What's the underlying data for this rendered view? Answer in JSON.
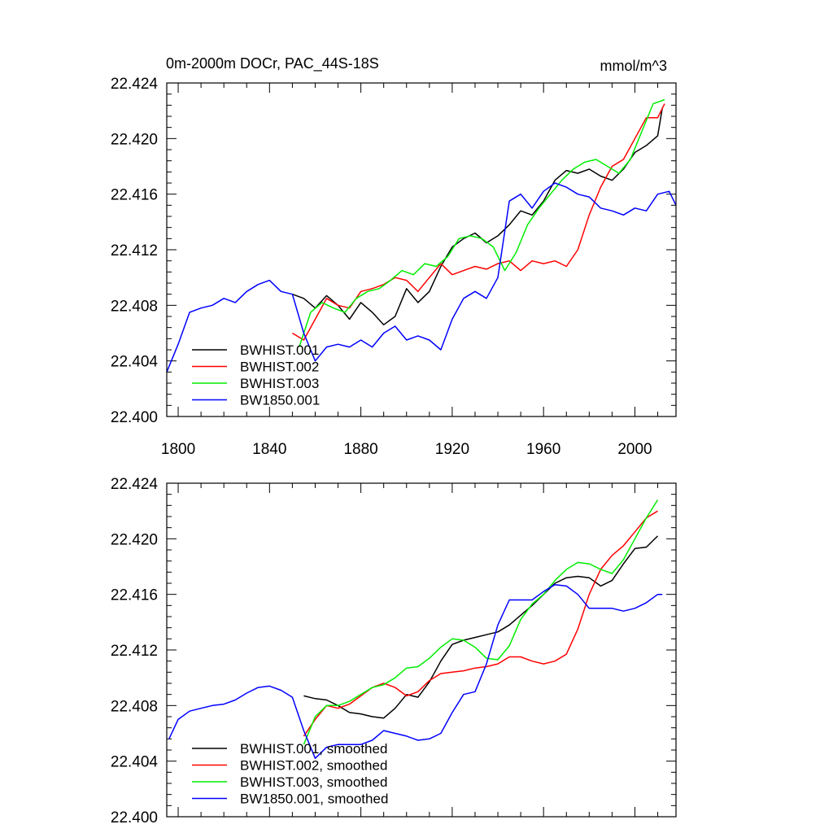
{
  "chart_data": [
    {
      "type": "line",
      "title": "0m-2000m DOCr, PAC_44S-18S",
      "units": "mmol/m^3",
      "xlim": [
        1795,
        2018
      ],
      "ylim": [
        22.4,
        22.424
      ],
      "x_ticks": [
        1800,
        1840,
        1880,
        1920,
        1960,
        2000
      ],
      "x_tick_labels": [
        "1800",
        "1840",
        "1880",
        "1920",
        "1960",
        "2000"
      ],
      "y_ticks": [
        22.4,
        22.404,
        22.408,
        22.412,
        22.416,
        22.42,
        22.424
      ],
      "y_tick_labels": [
        "22.400",
        "22.404",
        "22.408",
        "22.412",
        "22.416",
        "22.420",
        "22.424"
      ],
      "legend_position": "bottom-left",
      "series": [
        {
          "name": "BWHIST.001",
          "color": "#000000",
          "x": [
            1850,
            1855,
            1860,
            1865,
            1870,
            1875,
            1880,
            1885,
            1890,
            1895,
            1900,
            1905,
            1910,
            1915,
            1920,
            1925,
            1930,
            1935,
            1940,
            1945,
            1950,
            1955,
            1960,
            1965,
            1970,
            1975,
            1980,
            1985,
            1990,
            1995,
            2000,
            2005,
            2010,
            2012
          ],
          "y": [
            22.4088,
            22.4085,
            22.4078,
            22.4087,
            22.408,
            22.407,
            22.4082,
            22.4075,
            22.4066,
            22.4072,
            22.4092,
            22.4082,
            22.409,
            22.4108,
            22.4122,
            22.4128,
            22.4132,
            22.4125,
            22.413,
            22.4138,
            22.4148,
            22.4145,
            22.4155,
            22.417,
            22.4177,
            22.4175,
            22.4178,
            22.4173,
            22.417,
            22.4178,
            22.419,
            22.4195,
            22.4202,
            22.4222
          ]
        },
        {
          "name": "BWHIST.002",
          "color": "#ff0000",
          "x": [
            1850,
            1855,
            1860,
            1865,
            1870,
            1875,
            1880,
            1885,
            1890,
            1895,
            1900,
            1905,
            1910,
            1915,
            1920,
            1925,
            1930,
            1935,
            1940,
            1945,
            1950,
            1955,
            1960,
            1965,
            1970,
            1975,
            1980,
            1985,
            1990,
            1995,
            2000,
            2005,
            2010,
            2013
          ],
          "y": [
            22.406,
            22.4055,
            22.407,
            22.4085,
            22.408,
            22.4078,
            22.409,
            22.4092,
            22.4095,
            22.41,
            22.4098,
            22.409,
            22.41,
            22.411,
            22.4102,
            22.4105,
            22.4108,
            22.4106,
            22.411,
            22.4112,
            22.4105,
            22.4112,
            22.411,
            22.4112,
            22.4108,
            22.412,
            22.4145,
            22.4165,
            22.418,
            22.4185,
            22.42,
            22.4215,
            22.4215,
            22.4225
          ]
        },
        {
          "name": "BWHIST.003",
          "color": "#00ee00",
          "x": [
            1853,
            1858,
            1863,
            1868,
            1873,
            1878,
            1883,
            1888,
            1893,
            1898,
            1903,
            1908,
            1913,
            1918,
            1923,
            1928,
            1933,
            1938,
            1943,
            1948,
            1953,
            1958,
            1963,
            1968,
            1973,
            1978,
            1983,
            1988,
            1993,
            1998,
            2003,
            2008,
            2013
          ],
          "y": [
            22.405,
            22.4075,
            22.4082,
            22.4078,
            22.4075,
            22.4085,
            22.409,
            22.4092,
            22.4098,
            22.4105,
            22.4102,
            22.411,
            22.4108,
            22.4115,
            22.4128,
            22.413,
            22.4128,
            22.4122,
            22.4105,
            22.4118,
            22.4138,
            22.415,
            22.416,
            22.417,
            22.4178,
            22.4183,
            22.4185,
            22.418,
            22.4175,
            22.4185,
            22.4205,
            22.4225,
            22.4228
          ]
        },
        {
          "name": "BW1850.001",
          "color": "#0000ff",
          "x": [
            1795,
            1800,
            1805,
            1810,
            1815,
            1820,
            1825,
            1830,
            1835,
            1840,
            1845,
            1850,
            1855,
            1860,
            1865,
            1870,
            1875,
            1880,
            1885,
            1890,
            1895,
            1900,
            1905,
            1910,
            1915,
            1920,
            1925,
            1930,
            1935,
            1940,
            1945,
            1950,
            1955,
            1960,
            1965,
            1970,
            1975,
            1980,
            1985,
            1990,
            1995,
            2000,
            2005,
            2010,
            2015,
            2018
          ],
          "y": [
            22.4032,
            22.4052,
            22.4075,
            22.4078,
            22.408,
            22.4085,
            22.4082,
            22.409,
            22.4095,
            22.4098,
            22.409,
            22.4088,
            22.406,
            22.404,
            22.405,
            22.4052,
            22.405,
            22.4055,
            22.405,
            22.406,
            22.4065,
            22.4055,
            22.4058,
            22.4055,
            22.4048,
            22.407,
            22.4085,
            22.409,
            22.4085,
            22.41,
            22.4155,
            22.416,
            22.415,
            22.4162,
            22.4168,
            22.4165,
            22.416,
            22.4158,
            22.415,
            22.4148,
            22.4145,
            22.415,
            22.4148,
            22.416,
            22.4162,
            22.4152
          ]
        }
      ]
    },
    {
      "type": "line",
      "xlim": [
        1795,
        2018
      ],
      "ylim": [
        22.4,
        22.424
      ],
      "x_ticks": [
        1800,
        1840,
        1880,
        1920,
        1960,
        2000
      ],
      "y_ticks": [
        22.4,
        22.404,
        22.408,
        22.412,
        22.416,
        22.42,
        22.424
      ],
      "y_tick_labels": [
        "22.400",
        "22.404",
        "22.408",
        "22.412",
        "22.416",
        "22.420",
        "22.424"
      ],
      "legend_position": "bottom-left",
      "series": [
        {
          "name": "BWHIST.001, smoothed",
          "color": "#000000",
          "x": [
            1855,
            1860,
            1865,
            1870,
            1875,
            1880,
            1885,
            1890,
            1895,
            1900,
            1905,
            1910,
            1915,
            1920,
            1925,
            1930,
            1935,
            1940,
            1945,
            1950,
            1955,
            1960,
            1965,
            1970,
            1975,
            1980,
            1985,
            1990,
            1995,
            2000,
            2005,
            2010
          ],
          "y": [
            22.4087,
            22.4085,
            22.4084,
            22.408,
            22.4075,
            22.4074,
            22.4072,
            22.4071,
            22.4078,
            22.4088,
            22.4086,
            22.4097,
            22.4112,
            22.4124,
            22.4127,
            22.4129,
            22.4131,
            22.4133,
            22.4138,
            22.4145,
            22.4152,
            22.416,
            22.4168,
            22.4172,
            22.4173,
            22.4172,
            22.4166,
            22.417,
            22.4182,
            22.4193,
            22.4194,
            22.4202
          ]
        },
        {
          "name": "BWHIST.002, smoothed",
          "color": "#ff0000",
          "x": [
            1855,
            1860,
            1865,
            1870,
            1875,
            1880,
            1885,
            1890,
            1895,
            1900,
            1905,
            1910,
            1915,
            1920,
            1925,
            1930,
            1935,
            1940,
            1945,
            1950,
            1955,
            1960,
            1965,
            1970,
            1975,
            1980,
            1985,
            1990,
            1995,
            2000,
            2005,
            2010
          ],
          "y": [
            22.4058,
            22.407,
            22.408,
            22.4078,
            22.4081,
            22.4087,
            22.4093,
            22.4096,
            22.4093,
            22.4087,
            22.409,
            22.4098,
            22.4103,
            22.4104,
            22.4105,
            22.4107,
            22.4108,
            22.411,
            22.4115,
            22.4115,
            22.4112,
            22.411,
            22.4112,
            22.4117,
            22.4135,
            22.416,
            22.4178,
            22.4188,
            22.4195,
            22.4205,
            22.4215,
            22.422
          ]
        },
        {
          "name": "BWHIST.003, smoothed",
          "color": "#00ee00",
          "x": [
            1855,
            1860,
            1865,
            1870,
            1875,
            1880,
            1885,
            1890,
            1895,
            1900,
            1905,
            1910,
            1915,
            1920,
            1925,
            1930,
            1935,
            1940,
            1945,
            1950,
            1955,
            1960,
            1965,
            1970,
            1975,
            1980,
            1985,
            1990,
            1995,
            2000,
            2005,
            2010
          ],
          "y": [
            22.4052,
            22.4072,
            22.408,
            22.408,
            22.4083,
            22.4088,
            22.4093,
            22.4095,
            22.41,
            22.4107,
            22.4108,
            22.4114,
            22.4122,
            22.4128,
            22.4127,
            22.4122,
            22.4114,
            22.4113,
            22.4123,
            22.4142,
            22.4153,
            22.416,
            22.417,
            22.4178,
            22.4183,
            22.4182,
            22.4178,
            22.4175,
            22.4185,
            22.42,
            22.4215,
            22.4228
          ]
        },
        {
          "name": "BW1850.001, smoothed",
          "color": "#0000ff",
          "x": [
            1796,
            1800,
            1805,
            1810,
            1815,
            1820,
            1825,
            1830,
            1835,
            1840,
            1845,
            1850,
            1855,
            1860,
            1865,
            1870,
            1875,
            1880,
            1885,
            1890,
            1895,
            1900,
            1905,
            1910,
            1915,
            1920,
            1925,
            1930,
            1935,
            1940,
            1945,
            1950,
            1955,
            1960,
            1965,
            1970,
            1975,
            1980,
            1985,
            1990,
            1995,
            2000,
            2005,
            2010,
            2012
          ],
          "y": [
            22.4056,
            22.407,
            22.4076,
            22.4078,
            22.408,
            22.4081,
            22.4084,
            22.4089,
            22.4093,
            22.4094,
            22.4091,
            22.4086,
            22.4062,
            22.4042,
            22.405,
            22.4052,
            22.4052,
            22.4052,
            22.4055,
            22.4062,
            22.406,
            22.4058,
            22.4055,
            22.4056,
            22.406,
            22.4075,
            22.4088,
            22.409,
            22.411,
            22.4138,
            22.4156,
            22.4156,
            22.4156,
            22.4162,
            22.4167,
            22.4166,
            22.416,
            22.415,
            22.415,
            22.415,
            22.4148,
            22.415,
            22.4154,
            22.416,
            22.416
          ]
        }
      ]
    }
  ]
}
